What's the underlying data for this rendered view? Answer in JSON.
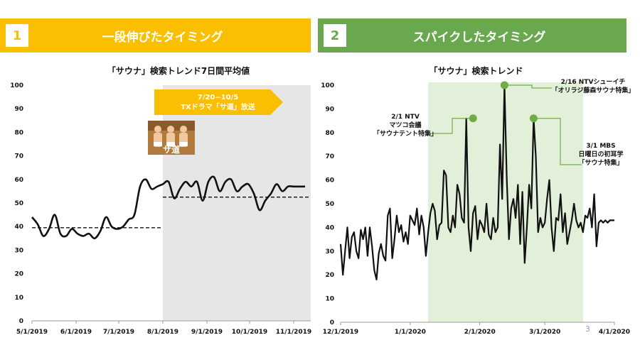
{
  "panel1": {
    "number": "1",
    "title": "一段伸びたタイミング"
  },
  "panel2": {
    "number": "2",
    "title": "スパイクしたタイミング"
  },
  "page_number": "3",
  "colors": {
    "panel1_accent": "#f9bf00",
    "panel2_accent": "#6aa84f",
    "shade_gray": "#e6e6e6",
    "shade_green": "#e2f0d9",
    "banner_orange": "#f9bf00",
    "marker_green": "#70ad47"
  },
  "chart_data": [
    {
      "type": "line",
      "title": "「サウナ」検索トレンド7日間平均値",
      "ylim": [
        0,
        100
      ],
      "yticks": [
        "0",
        "10",
        "20",
        "30",
        "40",
        "50",
        "60",
        "70",
        "80",
        "90",
        "100"
      ],
      "x_tick_labels": [
        "5/1/2019",
        "6/1/2019",
        "7/1/2019",
        "8/1/2019",
        "9/1/2019",
        "10/1/2019",
        "11/1/2019"
      ],
      "x_tick_days": [
        0,
        31,
        61,
        92,
        123,
        153,
        184
      ],
      "x_range_days": [
        0,
        196
      ],
      "series": [
        {
          "x_days": [
            0,
            4,
            8,
            12,
            16,
            20,
            24,
            28,
            32,
            36,
            40,
            44,
            48,
            52,
            56,
            60,
            64,
            68,
            72,
            76,
            80,
            84,
            88,
            92,
            96,
            100,
            104,
            108,
            112,
            116,
            120,
            124,
            128,
            132,
            136,
            140,
            144,
            148,
            152,
            156,
            160,
            164,
            168,
            172,
            176,
            180,
            184,
            188,
            192
          ],
          "values": [
            44,
            41,
            36,
            39,
            45,
            37,
            36,
            39,
            37,
            36,
            37,
            35,
            38,
            44,
            40,
            39,
            40,
            43,
            45,
            57,
            60,
            56,
            57,
            58,
            59,
            52,
            56,
            59,
            57,
            59,
            51,
            59,
            61,
            55,
            59,
            60,
            55,
            57,
            58,
            54,
            47,
            51,
            54,
            58,
            55,
            57,
            57,
            57,
            57
          ]
        }
      ],
      "mean_lines": [
        {
          "x_days": [
            0,
            92
          ],
          "value": 39.5
        },
        {
          "x_days": [
            92,
            196
          ],
          "value": 52.5
        }
      ],
      "shaded_region_days": [
        92,
        196
      ],
      "banner": {
        "line1": "7/20~10/5",
        "line2": "TXドラマ「サ道」放送"
      },
      "image_caption": "サ道"
    },
    {
      "type": "line",
      "title": "「サウナ」検索トレンド",
      "ylim": [
        0,
        100
      ],
      "yticks": [
        "0",
        "10",
        "20",
        "30",
        "40",
        "50",
        "60",
        "70",
        "80",
        "90",
        "100"
      ],
      "x_tick_labels": [
        "12/1/2019",
        "1/1/2020",
        "2/1/2020",
        "3/1/2020",
        "4/1/2020"
      ],
      "x_tick_days": [
        0,
        31,
        62,
        91,
        122
      ],
      "x_range_days": [
        0,
        122
      ],
      "series": [
        {
          "x_days": [
            0,
            1,
            2,
            3,
            4,
            5,
            6,
            7,
            8,
            9,
            10,
            11,
            12,
            13,
            14,
            15,
            16,
            17,
            18,
            19,
            20,
            21,
            22,
            23,
            24,
            25,
            26,
            27,
            28,
            29,
            30,
            31,
            32,
            33,
            34,
            35,
            36,
            37,
            38,
            39,
            40,
            41,
            42,
            43,
            44,
            45,
            46,
            47,
            48,
            49,
            50,
            51,
            52,
            53,
            54,
            55,
            56,
            57,
            58,
            59,
            60,
            61,
            62,
            63,
            64,
            65,
            66,
            67,
            68,
            69,
            70,
            71,
            72,
            73,
            74,
            75,
            76,
            77,
            78,
            79,
            80,
            81,
            82,
            83,
            84,
            85,
            86,
            87,
            88,
            89,
            90,
            91,
            92,
            93,
            94,
            95,
            96,
            97,
            98,
            99,
            100,
            101,
            102,
            103,
            104,
            105,
            106,
            107,
            108,
            109,
            110,
            111,
            112,
            113,
            114,
            115,
            116,
            117,
            118,
            119,
            120,
            121,
            122
          ],
          "values": [
            33,
            20,
            30,
            40,
            27,
            36,
            38,
            30,
            27,
            39,
            35,
            40,
            28,
            40,
            32,
            22,
            18,
            29,
            33,
            28,
            26,
            45,
            48,
            27,
            35,
            45,
            38,
            41,
            34,
            38,
            33,
            45,
            43,
            41,
            48,
            37,
            45,
            40,
            28,
            38,
            46,
            50,
            47,
            35,
            41,
            42,
            64,
            62,
            40,
            38,
            45,
            40,
            58,
            54,
            44,
            42,
            86,
            40,
            30,
            46,
            49,
            35,
            43,
            41,
            38,
            50,
            37,
            35,
            44,
            38,
            40,
            75,
            52,
            100,
            62,
            35,
            48,
            52,
            44,
            58,
            33,
            55,
            25,
            40,
            58,
            48,
            86,
            70,
            38,
            44,
            40,
            42,
            52,
            60,
            40,
            30,
            44,
            43,
            54,
            38,
            46,
            33,
            38,
            43,
            50,
            43,
            40,
            42,
            38,
            45,
            44,
            48,
            40,
            54,
            32,
            42,
            43,
            42,
            43,
            42,
            43,
            43,
            43
          ]
        }
      ],
      "shaded_region_days": [
        39,
        108
      ],
      "annotations": [
        {
          "lines": [
            "2/1 NTV",
            "マツコ会議",
            "「サウナテント特集」"
          ],
          "x_day": 59,
          "value": 86
        },
        {
          "lines": [
            "2/16 NTVシューイチ",
            "「オリラジ藤森サウナ特集」"
          ],
          "x_day": 73,
          "value": 100
        },
        {
          "lines": [
            "3/1 MBS",
            "日曜日の初耳学",
            "「サウナ特集」"
          ],
          "x_day": 86,
          "value": 86
        }
      ]
    }
  ]
}
